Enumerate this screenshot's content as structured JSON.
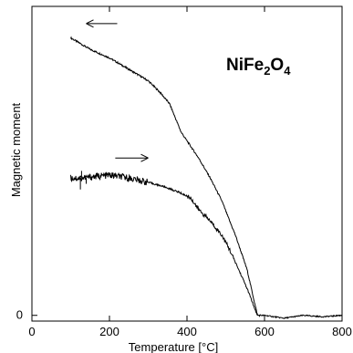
{
  "chart_data": {
    "type": "line",
    "title_parts": [
      "NiFe",
      "2",
      "O",
      "4"
    ],
    "xlabel": "Temperature [°C]",
    "ylabel": "Magnetic moment",
    "xlim": [
      0,
      800
    ],
    "ylim": [
      -0.02,
      1.08
    ],
    "x_ticks": [
      "0",
      "200",
      "400",
      "600",
      "800"
    ],
    "y_ticks": [
      "0"
    ],
    "grid": false,
    "series": [
      {
        "direction": "cooling",
        "x": [
          100,
          150,
          200,
          250,
          300,
          330,
          355,
          370,
          385,
          400,
          430,
          460,
          490,
          510,
          525,
          540,
          555,
          565,
          575,
          582,
          600,
          650,
          700,
          750,
          800
        ],
        "y": [
          0.97,
          0.93,
          0.9,
          0.86,
          0.82,
          0.78,
          0.74,
          0.69,
          0.64,
          0.61,
          0.55,
          0.48,
          0.4,
          0.33,
          0.28,
          0.22,
          0.16,
          0.1,
          0.04,
          0.0,
          0.0,
          -0.01,
          0.0,
          -0.005,
          0.0
        ]
      },
      {
        "direction": "heating",
        "x": [
          100,
          130,
          160,
          200,
          250,
          300,
          340,
          380,
          410,
          430,
          460,
          490,
          510,
          530,
          550,
          565,
          575,
          582
        ],
        "y": [
          0.48,
          0.48,
          0.485,
          0.49,
          0.48,
          0.465,
          0.45,
          0.43,
          0.41,
          0.37,
          0.33,
          0.28,
          0.23,
          0.17,
          0.11,
          0.06,
          0.02,
          0.0
        ]
      }
    ],
    "arrows": [
      {
        "direction": "left",
        "x_from": 220,
        "x_to": 140,
        "y": 1.02
      },
      {
        "direction": "right",
        "x_from": 215,
        "x_to": 300,
        "y": 0.55
      }
    ]
  }
}
